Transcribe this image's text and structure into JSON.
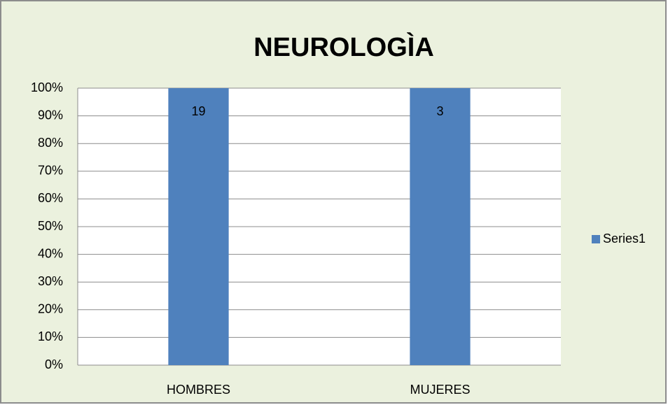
{
  "chart_data": {
    "type": "bar",
    "stacked": "percent",
    "title": "NEUROLOGÌA",
    "categories": [
      "HOMBRES",
      "MUJERES"
    ],
    "series": [
      {
        "name": "Series1",
        "color": "#4f81bd",
        "values": [
          19,
          3
        ]
      }
    ],
    "ylim": [
      0,
      100
    ],
    "yticks": [
      {
        "value": 0,
        "label": "0%"
      },
      {
        "value": 10,
        "label": "10%"
      },
      {
        "value": 20,
        "label": "20%"
      },
      {
        "value": 30,
        "label": "30%"
      },
      {
        "value": 40,
        "label": "40%"
      },
      {
        "value": 50,
        "label": "50%"
      },
      {
        "value": 60,
        "label": "60%"
      },
      {
        "value": 70,
        "label": "70%"
      },
      {
        "value": 80,
        "label": "80%"
      },
      {
        "value": 90,
        "label": "90%"
      },
      {
        "value": 100,
        "label": "100%"
      }
    ],
    "grid": true,
    "legend": "right"
  }
}
